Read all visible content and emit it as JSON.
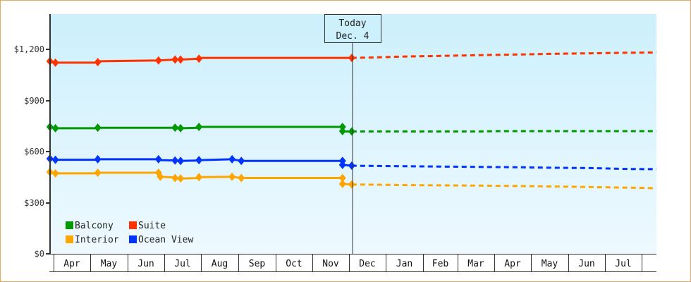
{
  "chart_data": {
    "type": "line",
    "title": "",
    "xlabel": "",
    "ylabel": "",
    "ylim": [
      0,
      1400
    ],
    "y_ticks": [
      {
        "value": 0,
        "label": "$0"
      },
      {
        "value": 300,
        "label": "$300"
      },
      {
        "value": 600,
        "label": "$600"
      },
      {
        "value": 900,
        "label": "$900"
      },
      {
        "value": 1200,
        "label": "$1,200"
      }
    ],
    "x_months": [
      "Apr",
      "May",
      "Jun",
      "Jul",
      "Aug",
      "Sep",
      "Oct",
      "Nov",
      "Dec",
      "Jan",
      "Feb",
      "Mar",
      "Apr",
      "May",
      "Jun",
      "Jul"
    ],
    "grid": false,
    "legend_position": "lower-left inside plot",
    "today_marker": {
      "line1": "Today",
      "line2": "Dec. 4",
      "x_month_index": 8.1
    },
    "series": [
      {
        "name": "Suite",
        "color": "#ff3300",
        "historical": [
          [
            -0.1,
            1130
          ],
          [
            0.05,
            1122
          ],
          [
            1.2,
            1122
          ],
          [
            1.2,
            1130
          ],
          [
            1.25,
            1130
          ],
          [
            2.85,
            1135
          ],
          [
            3.3,
            1140
          ],
          [
            3.4,
            1140
          ],
          [
            3.45,
            1140
          ],
          [
            3.95,
            1145
          ],
          [
            4.0,
            1150
          ],
          [
            8.1,
            1150
          ]
        ],
        "forecast": [
          [
            8.1,
            1150
          ],
          [
            8.6,
            1152
          ],
          [
            9.6,
            1158
          ],
          [
            10.6,
            1162
          ],
          [
            11.6,
            1166
          ],
          [
            12.6,
            1170
          ],
          [
            13.6,
            1174
          ],
          [
            14.6,
            1177
          ],
          [
            15.6,
            1180
          ],
          [
            16.5,
            1182
          ]
        ]
      },
      {
        "name": "Balcony",
        "color": "#009900",
        "historical": [
          [
            -0.1,
            745
          ],
          [
            0.05,
            737
          ],
          [
            1.2,
            737
          ],
          [
            1.25,
            740
          ],
          [
            3.3,
            740
          ],
          [
            3.35,
            736
          ],
          [
            3.45,
            737
          ],
          [
            3.95,
            740
          ],
          [
            4.0,
            745
          ],
          [
            7.85,
            745
          ],
          [
            7.85,
            718
          ],
          [
            8.1,
            718
          ]
        ],
        "forecast": [
          [
            8.1,
            718
          ],
          [
            9.6,
            718
          ],
          [
            11.6,
            718
          ],
          [
            12.0,
            720
          ],
          [
            13.6,
            720
          ],
          [
            15.6,
            720
          ],
          [
            16.5,
            720
          ]
        ]
      },
      {
        "name": "Ocean View",
        "color": "#0033ff",
        "historical": [
          [
            -0.1,
            558
          ],
          [
            0.05,
            552
          ],
          [
            1.2,
            552
          ],
          [
            1.25,
            555
          ],
          [
            2.85,
            555
          ],
          [
            2.9,
            550
          ],
          [
            3.3,
            548
          ],
          [
            3.4,
            545
          ],
          [
            3.45,
            545
          ],
          [
            3.95,
            548
          ],
          [
            4.0,
            550
          ],
          [
            4.85,
            555
          ],
          [
            5.1,
            545
          ],
          [
            7.85,
            545
          ],
          [
            7.85,
            522
          ],
          [
            8.1,
            517
          ]
        ],
        "forecast": [
          [
            8.1,
            517
          ],
          [
            9.0,
            515
          ],
          [
            10.6,
            512
          ],
          [
            11.6,
            510
          ],
          [
            12.6,
            508
          ],
          [
            13.6,
            505
          ],
          [
            14.6,
            503
          ],
          [
            15.6,
            498
          ],
          [
            16.5,
            497
          ]
        ]
      },
      {
        "name": "Interior",
        "color": "#ffa500",
        "historical": [
          [
            -0.1,
            480
          ],
          [
            0.05,
            472
          ],
          [
            1.2,
            472
          ],
          [
            1.25,
            476
          ],
          [
            2.85,
            476
          ],
          [
            2.9,
            452
          ],
          [
            3.3,
            448
          ],
          [
            3.4,
            442
          ],
          [
            3.45,
            442
          ],
          [
            3.95,
            445
          ],
          [
            4.0,
            450
          ],
          [
            4.85,
            452
          ],
          [
            5.1,
            445
          ],
          [
            7.85,
            445
          ],
          [
            7.85,
            410
          ],
          [
            8.1,
            407
          ]
        ],
        "forecast": [
          [
            8.1,
            407
          ],
          [
            9.6,
            403
          ],
          [
            11.6,
            400
          ],
          [
            12.6,
            398
          ],
          [
            13.6,
            395
          ],
          [
            14.6,
            392
          ],
          [
            15.6,
            388
          ],
          [
            16.5,
            385
          ]
        ]
      }
    ],
    "data_points": {
      "Suite": [
        [
          -0.1,
          1130
        ],
        [
          0.05,
          1122
        ],
        [
          1.2,
          1125
        ],
        [
          2.85,
          1135
        ],
        [
          3.3,
          1140
        ],
        [
          3.45,
          1140
        ],
        [
          3.95,
          1145
        ],
        [
          8.1,
          1150
        ]
      ],
      "Balcony": [
        [
          -0.1,
          745
        ],
        [
          0.05,
          737
        ],
        [
          1.2,
          740
        ],
        [
          3.3,
          740
        ],
        [
          3.45,
          737
        ],
        [
          3.95,
          745
        ],
        [
          7.85,
          745
        ],
        [
          7.85,
          720
        ],
        [
          8.1,
          718
        ]
      ],
      "Ocean View": [
        [
          -0.1,
          558
        ],
        [
          0.05,
          552
        ],
        [
          1.2,
          555
        ],
        [
          2.85,
          555
        ],
        [
          3.3,
          548
        ],
        [
          3.45,
          545
        ],
        [
          3.95,
          550
        ],
        [
          4.85,
          555
        ],
        [
          5.1,
          545
        ],
        [
          7.85,
          545
        ],
        [
          7.85,
          522
        ],
        [
          8.1,
          517
        ]
      ],
      "Interior": [
        [
          -0.1,
          480
        ],
        [
          0.05,
          472
        ],
        [
          1.2,
          476
        ],
        [
          2.85,
          476
        ],
        [
          2.9,
          452
        ],
        [
          3.3,
          445
        ],
        [
          3.45,
          442
        ],
        [
          3.95,
          450
        ],
        [
          4.85,
          452
        ],
        [
          5.1,
          445
        ],
        [
          7.85,
          445
        ],
        [
          7.85,
          410
        ],
        [
          8.1,
          407
        ]
      ]
    }
  },
  "legend": {
    "items": [
      {
        "label": "Balcony",
        "color": "#009900"
      },
      {
        "label": "Suite",
        "color": "#ff3300"
      },
      {
        "label": "Interior",
        "color": "#ffa500"
      },
      {
        "label": "Ocean View",
        "color": "#0033ff"
      }
    ]
  },
  "colors": {
    "frame_border": "#e8a860",
    "plot_bg_top": "#ccf0fc",
    "plot_bg_bottom": "#eef9ff",
    "axis": "#333333"
  }
}
